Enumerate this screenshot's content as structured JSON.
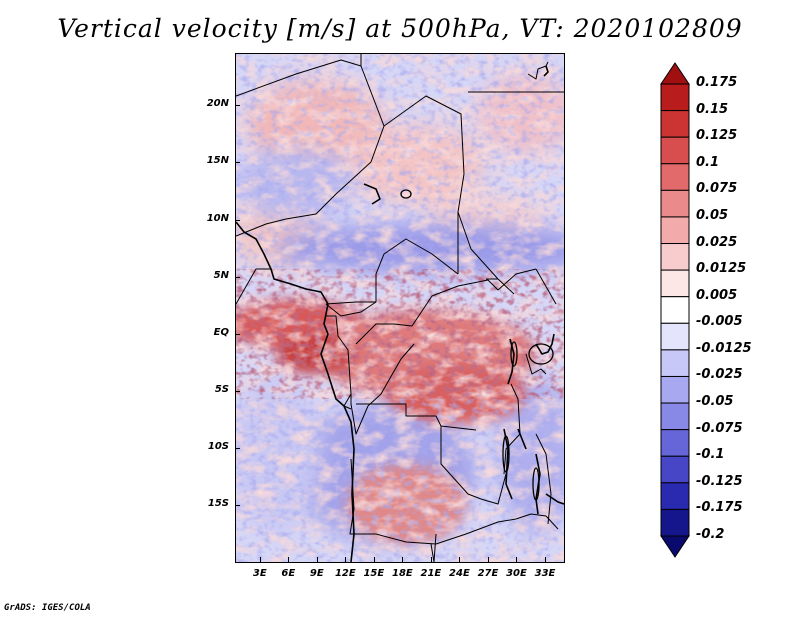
{
  "title": "Vertical velocity [m/s] at 500hPa, VT: 2020102809",
  "map": {
    "variable": "Vertical velocity",
    "units": "m/s",
    "level": "500hPa",
    "valid_time": "2020102809",
    "lat_labels": [
      "20N",
      "15N",
      "10N",
      "5N",
      "EQ",
      "5S",
      "10S",
      "15S"
    ],
    "lat_values": [
      20,
      15,
      10,
      5,
      0,
      -5,
      -10,
      -15
    ],
    "lon_labels": [
      "3E",
      "6E",
      "9E",
      "12E",
      "15E",
      "18E",
      "21E",
      "24E",
      "27E",
      "30E",
      "33E"
    ],
    "lon_values": [
      3,
      6,
      9,
      12,
      15,
      18,
      21,
      24,
      27,
      30,
      33
    ],
    "lat_range": [
      -20,
      24.5
    ],
    "lon_range": [
      0.5,
      35
    ]
  },
  "colorbar": {
    "labels": [
      "0.175",
      "0.15",
      "0.125",
      "0.1",
      "0.075",
      "0.05",
      "0.025",
      "0.0125",
      "0.005",
      "-0.005",
      "-0.0125",
      "-0.025",
      "-0.05",
      "-0.075",
      "-0.1",
      "-0.125",
      "-0.175",
      "-0.2"
    ],
    "colors": [
      "#a01010",
      "#b81c1c",
      "#cc3434",
      "#d84e4e",
      "#e26a6a",
      "#ea8a8a",
      "#f2aaaa",
      "#f8cccc",
      "#fce6e6",
      "#ffffff",
      "#e4e4fc",
      "#c8c8f8",
      "#a8a8f0",
      "#8888e6",
      "#6666d8",
      "#4646c6",
      "#2a2ab0",
      "#16168c",
      "#0a0a6e"
    ]
  },
  "footer": "GrADS: IGES/COLA"
}
